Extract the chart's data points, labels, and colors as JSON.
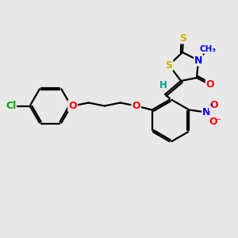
{
  "bg_color": "#e8e8e8",
  "bond_color": "#000000",
  "bond_width": 1.6,
  "atom_colors": {
    "S": "#c8b400",
    "N": "#0000ff",
    "O": "#ff0000",
    "Cl": "#00aa00",
    "H": "#009999",
    "C": "#000000"
  },
  "figsize": [
    3.0,
    3.0
  ],
  "dpi": 100
}
